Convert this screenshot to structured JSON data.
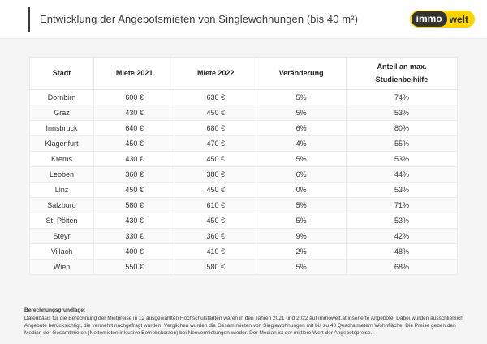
{
  "header": {
    "title": "Entwicklung der Angebotsmieten von Singlewohnungen (bis 40 m²)",
    "logo": {
      "part1": "immo",
      "part2": "welt"
    }
  },
  "colors": {
    "brand_yellow": "#ffd500",
    "brand_dark": "#35332e",
    "background_gray": "#f5f5f5",
    "table_border": "#ededed",
    "text": "#333333"
  },
  "table": {
    "columns": [
      "Stadt",
      "Miete 2021",
      "Miete 2022",
      "Veränderung",
      "Anteil an max. Studienbeihilfe"
    ],
    "rows": [
      [
        "Dornbirn",
        "600 €",
        "630 €",
        "5%",
        "74%"
      ],
      [
        "Graz",
        "430 €",
        "450 €",
        "5%",
        "53%"
      ],
      [
        "Innsbruck",
        "640 €",
        "680 €",
        "6%",
        "80%"
      ],
      [
        "Klagenfurt",
        "450 €",
        "470 €",
        "4%",
        "55%"
      ],
      [
        "Krems",
        "430 €",
        "450 €",
        "5%",
        "53%"
      ],
      [
        "Leoben",
        "360 €",
        "380 €",
        "6%",
        "44%"
      ],
      [
        "Linz",
        "450 €",
        "450 €",
        "0%",
        "53%"
      ],
      [
        "Salzburg",
        "580 €",
        "610 €",
        "5%",
        "71%"
      ],
      [
        "St. Pölten",
        "430 €",
        "450 €",
        "5%",
        "53%"
      ],
      [
        "Steyr",
        "330 €",
        "360 €",
        "9%",
        "42%"
      ],
      [
        "Villach",
        "400 €",
        "410 €",
        "2%",
        "48%"
      ],
      [
        "Wien",
        "550 €",
        "580 €",
        "5%",
        "68%"
      ]
    ]
  },
  "footnote": {
    "heading": "Berechnungsgrundlage:",
    "body": "Datenbasis für die Berechnung der Mietpreise in 12 ausgewählten Hochschulstädten waren in den Jahren 2021 und 2022 auf immowelt.at inserierte Angebote. Dabei wurden ausschließlich Angebote berücksichtigt, die vermehrt nachgefragt wurden. Verglichen wurden die Gesamtmieten von Singlewohnungen mit bis zu 40 Quadratmetern Wohnfläche. Die Preise geben den Median der Gesamtmieten (Nettomieten inklusive Betriebskosten) bei Neuvermietungen wieder. Der Median ist der mittlere Wert der Angebotspreise."
  },
  "chart_data": {
    "type": "table",
    "title": "Entwicklung der Angebotsmieten von Singlewohnungen (bis 40 m²)",
    "columns": [
      "Stadt",
      "Miete 2021",
      "Miete 2022",
      "Veränderung",
      "Anteil an max. Studienbeihilfe"
    ],
    "categories": [
      "Dornbirn",
      "Graz",
      "Innsbruck",
      "Klagenfurt",
      "Krems",
      "Leoben",
      "Linz",
      "Salzburg",
      "St. Pölten",
      "Steyr",
      "Villach",
      "Wien"
    ],
    "series": [
      {
        "name": "Miete 2021 (€)",
        "values": [
          600,
          430,
          640,
          450,
          430,
          360,
          450,
          580,
          430,
          330,
          400,
          550
        ]
      },
      {
        "name": "Miete 2022 (€)",
        "values": [
          630,
          450,
          680,
          470,
          450,
          380,
          450,
          610,
          450,
          360,
          410,
          580
        ]
      },
      {
        "name": "Veränderung (%)",
        "values": [
          5,
          5,
          6,
          4,
          5,
          6,
          0,
          5,
          5,
          9,
          2,
          5
        ]
      },
      {
        "name": "Anteil an max. Studienbeihilfe (%)",
        "values": [
          74,
          53,
          80,
          55,
          53,
          44,
          53,
          71,
          53,
          42,
          48,
          68
        ]
      }
    ]
  }
}
